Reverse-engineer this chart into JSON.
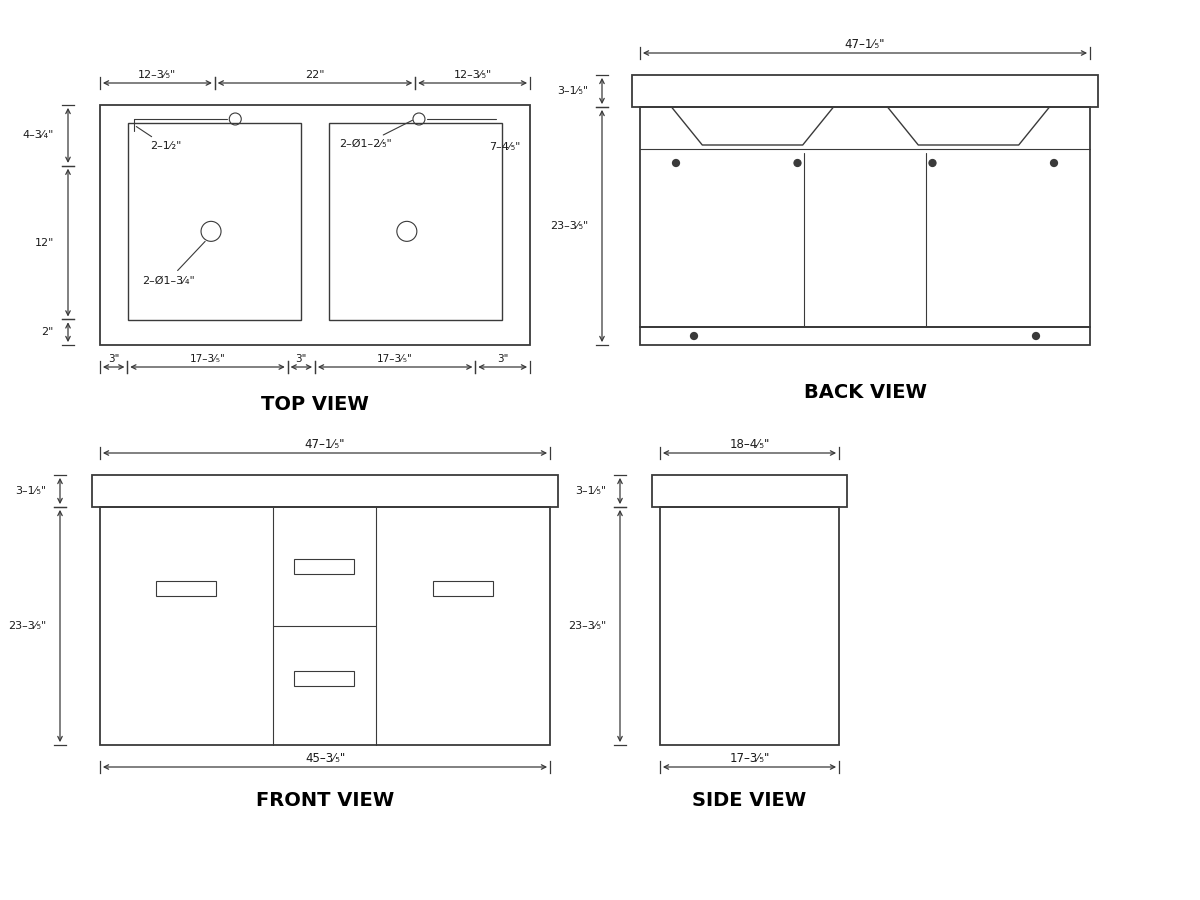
{
  "bg_color": "#ffffff",
  "line_color": "#3a3a3a",
  "text_color": "#1a1a1a",
  "title_color": "#000000",
  "lw": 1.3,
  "lw_thin": 0.8,
  "lw_med": 1.0,
  "labels": {
    "top_view_title": "TOP VIEW",
    "back_view_title": "BACK VIEW",
    "front_view_title": "FRONT VIEW",
    "side_view_title": "SIDE VIEW",
    "tv_dim_top_l": "12–3⁄₅\"",
    "tv_dim_top_m": "22\"",
    "tv_dim_top_r": "12–3⁄₅\"",
    "tv_dim_bot_1": "3\"",
    "tv_dim_bot_2": "17–3⁄₅\"",
    "tv_dim_bot_3": "3\"",
    "tv_dim_bot_4": "17–3⁄₅\"",
    "tv_dim_bot_5": "3\"",
    "tv_dim_l1": "4–3⁄₄\"",
    "tv_dim_l2": "12\"",
    "tv_dim_l3": "2\"",
    "tv_ann_fau1": "2–1⁄₂\"",
    "tv_ann_fau2": "2–Ø1–2⁄₅\"",
    "tv_ann_fau2b": "7–4⁄₅\"",
    "tv_ann_drain1": "2–Ø1–3⁄₄\"",
    "bv_dim_top": "47–1⁄₅\"",
    "bv_dim_l1": "3–1⁄₅\"",
    "bv_dim_l2": "23–3⁄₅\"",
    "fv_dim_top": "47–1⁄₅\"",
    "fv_dim_l1": "3–1⁄₅\"",
    "fv_dim_l2": "23–3⁄₅\"",
    "fv_dim_bot": "45–3⁄₅\"",
    "sv_dim_top": "18–4⁄₅\"",
    "sv_dim_l1": "3–1⁄₅\"",
    "sv_dim_l2": "23–3⁄₅\"",
    "sv_dim_bot": "17–3⁄₅\""
  }
}
